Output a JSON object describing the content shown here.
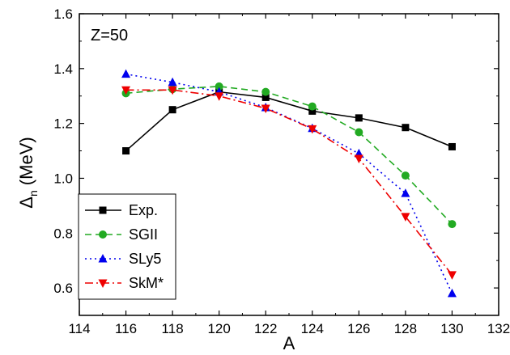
{
  "chart_data": {
    "type": "line",
    "annotation": "Z=50",
    "xlabel": "A",
    "ylabel_main": "Δ",
    "ylabel_sub": "n",
    "ylabel_unit": "(MeV)",
    "xlim": [
      114,
      132
    ],
    "ylim": [
      0.5,
      1.6
    ],
    "xticks": [
      "114",
      "116",
      "118",
      "120",
      "122",
      "124",
      "126",
      "128",
      "130",
      "132"
    ],
    "yticks": [
      "0.6",
      "0.8",
      "1.0",
      "1.2",
      "1.4",
      "1.6"
    ],
    "grid": false,
    "legend_position": "bottom-left",
    "series": [
      {
        "name": "Exp.",
        "color": "#000000",
        "dash": "solid",
        "marker": "square",
        "x": [
          116,
          118,
          120,
          122,
          124,
          126,
          128,
          130
        ],
        "y": [
          1.1,
          1.25,
          1.315,
          1.295,
          1.245,
          1.22,
          1.185,
          1.115
        ]
      },
      {
        "name": "SGII",
        "color": "#22aa22",
        "dash": "dash",
        "marker": "circle",
        "x": [
          116,
          118,
          120,
          122,
          124,
          126,
          128,
          130
        ],
        "y": [
          1.31,
          1.325,
          1.335,
          1.315,
          1.262,
          1.168,
          1.01,
          0.833
        ]
      },
      {
        "name": "SLy5",
        "color": "#0000ee",
        "dash": "dot",
        "marker": "triangle-up",
        "x": [
          116,
          118,
          120,
          122,
          124,
          126,
          128,
          130
        ],
        "y": [
          1.38,
          1.35,
          1.315,
          1.258,
          1.182,
          1.09,
          0.945,
          0.58
        ]
      },
      {
        "name": "SkM*",
        "color": "#ee0000",
        "dash": "dashdot",
        "marker": "triangle-down",
        "x": [
          116,
          118,
          120,
          122,
          124,
          126,
          128,
          130
        ],
        "y": [
          1.322,
          1.322,
          1.3,
          1.255,
          1.18,
          1.072,
          0.86,
          0.648
        ]
      }
    ]
  }
}
